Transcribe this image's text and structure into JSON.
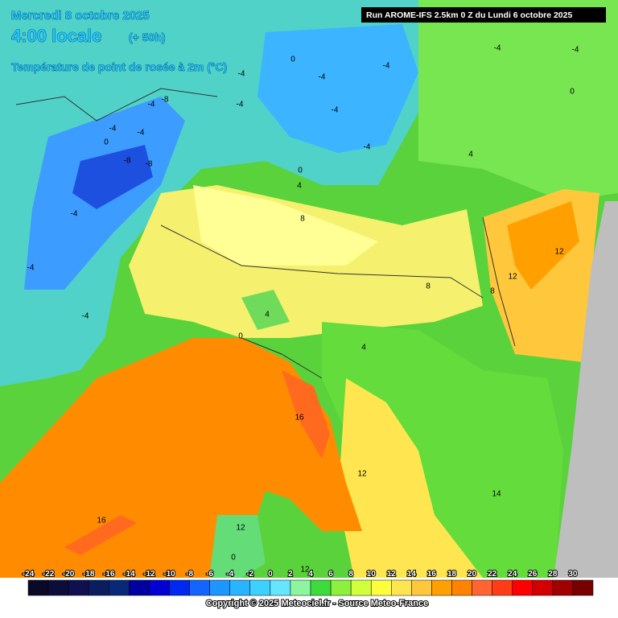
{
  "header": {
    "date": "Mercredi 8 octobre 2025",
    "time": "4:00 locale",
    "lead": "(+ 50h)",
    "parameter": "Température de point de rosée à 2m (°C)",
    "run": "Run AROME-IFS 2.5km 0 Z du Lundi 6 octobre 2025"
  },
  "map_labels": [
    "-4",
    "-8",
    "-4",
    "-4",
    "0",
    "-8",
    "-8",
    "-4",
    "-4",
    "-4",
    "0",
    "-4",
    "-4",
    "-4",
    "-4",
    "-4",
    "-4",
    "0",
    "4",
    "4",
    "0",
    "-4",
    "-4",
    "8",
    "12",
    "12",
    "8",
    "8",
    "4",
    "0",
    "4",
    "16",
    "12",
    "14",
    "16",
    "12",
    "0",
    "12"
  ],
  "legend": {
    "ticks": [
      -24,
      -22,
      -20,
      -18,
      -16,
      -14,
      -12,
      -10,
      -8,
      -6,
      -4,
      -2,
      0,
      2,
      4,
      6,
      8,
      10,
      12,
      14,
      16,
      18,
      20,
      22,
      24,
      26,
      28,
      30
    ],
    "colors": [
      "#0a0a28",
      "#0d0d3c",
      "#101050",
      "#0a1e5f",
      "#0a2878",
      "#0000a0",
      "#0000d2",
      "#0028f0",
      "#1464ff",
      "#1e96ff",
      "#28b4ff",
      "#3cd2ff",
      "#64e6ff",
      "#8cf5a0",
      "#3cdc3c",
      "#8cf03c",
      "#d2ff3c",
      "#ffff3c",
      "#ffe650",
      "#ffc83c",
      "#ffa000",
      "#ff8200",
      "#ff6432",
      "#ff3c14",
      "#ff0000",
      "#d20000",
      "#a00000",
      "#780000"
    ]
  },
  "footer": {
    "copyright": "Copyright © 2025 Meteociel.fr - Source Meteo-France"
  }
}
